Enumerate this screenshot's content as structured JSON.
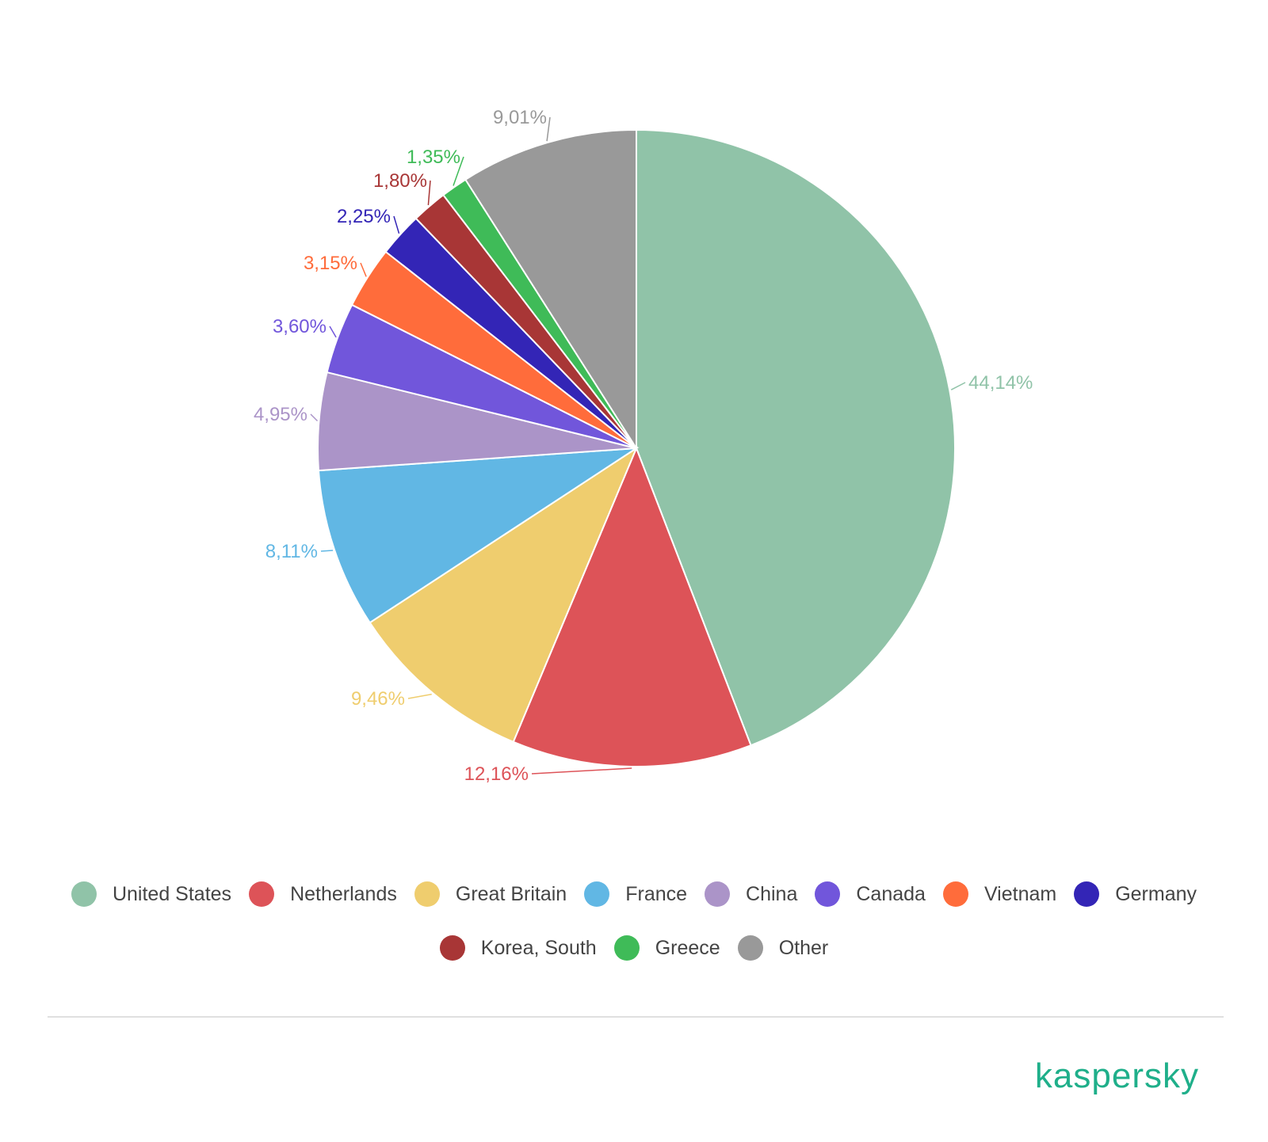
{
  "chart_data": {
    "type": "pie",
    "title": "",
    "series": [
      {
        "categories": [
          "United States",
          "Netherlands",
          "Great Britain",
          "France",
          "China",
          "Canada",
          "Vietnam",
          "Germany",
          "Korea, South",
          "Greece",
          "Other"
        ],
        "values": [
          44.14,
          12.16,
          9.46,
          8.11,
          4.95,
          3.6,
          3.15,
          2.25,
          1.8,
          1.35,
          9.01
        ],
        "labels": [
          "44,14%",
          "12,16%",
          "9,46%",
          "8,11%",
          "4,95%",
          "3,60%",
          "3,15%",
          "2,25%",
          "1,80%",
          "1,35%",
          "9,01%"
        ],
        "colors": [
          "#90c3a8",
          "#dd5358",
          "#efcd6e",
          "#61b7e4",
          "#ab94c8",
          "#7156db",
          "#ff6c3b",
          "#3325b6",
          "#a83636",
          "#3fbb58",
          "#999999"
        ]
      }
    ],
    "legend_placement": "bottom"
  },
  "legend": {
    "items": [
      "United States",
      "Netherlands",
      "Great Britain",
      "France",
      "China",
      "Canada",
      "Vietnam",
      "Germany",
      "Korea, South",
      "Greece",
      "Other"
    ]
  },
  "brand": {
    "logo_text": "kaspersky",
    "color": "#1faf8a"
  }
}
